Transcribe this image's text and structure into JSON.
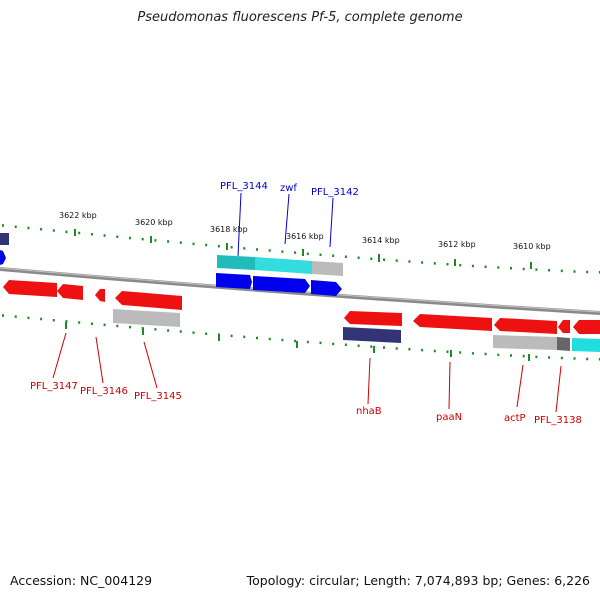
{
  "title": "Pseudomonas fluorescens Pf-5, complete genome",
  "accession": "Accession: NC_004129",
  "topology": "Topology: circular; Length: 7,074,893 bp; Genes: 6,226",
  "colors": {
    "forward_label": "#0000cc",
    "reverse_label": "#cc0000",
    "tick": "#228822",
    "backbone": "#888888",
    "gene_red": "#ee1111",
    "gene_blue": "#0000ee",
    "gene_cyan": "#22cccc",
    "gene_gray": "#bbbbbb",
    "gene_navy": "#333377"
  },
  "ticks": [
    {
      "label": "3622 kbp"
    },
    {
      "label": "3620 kbp"
    },
    {
      "label": "3618 kbp"
    },
    {
      "label": "3616 kbp"
    },
    {
      "label": "3614 kbp"
    },
    {
      "label": "3612 kbp"
    },
    {
      "label": "3610 kbp"
    }
  ],
  "labels": {
    "forward": [
      "PFL_3144",
      "zwf",
      "PFL_3142"
    ],
    "reverse": [
      "PFL_3147",
      "PFL_3146",
      "PFL_3145",
      "nhaB",
      "paaN",
      "actP",
      "PFL_3138"
    ]
  }
}
